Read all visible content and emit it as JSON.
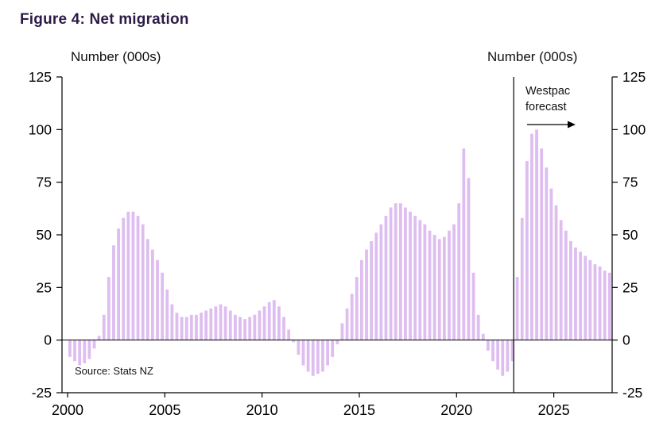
{
  "title": "Figure 4: Net migration",
  "left_axis_label": "Number (000s)",
  "right_axis_label": "Number (000s)",
  "forecast_label": "Westpac forecast",
  "source": "Source: Stats NZ",
  "y_ticks": [
    125,
    100,
    75,
    50,
    25,
    0,
    -25
  ],
  "x_ticks": [
    2000,
    2005,
    2010,
    2015,
    2020,
    2025
  ],
  "colors": {
    "bar": "#debdf0",
    "axis": "#000000",
    "title": "#2e1a47"
  },
  "chart_data": {
    "type": "bar",
    "title": "Figure 4: Net migration",
    "ylabel": "Number (000s)",
    "unit": "thousands of people",
    "frequency": "quarterly",
    "start_year": 2000,
    "x_range": [
      2000,
      2028
    ],
    "ylim": [
      -25,
      125
    ],
    "forecast_start_year": 2023,
    "forecast_source": "Westpac forecast",
    "legend_position": "none",
    "grid": false,
    "series": [
      {
        "name": "Net migration (000s)",
        "values": [
          -8,
          -10,
          -12,
          -11,
          -9,
          -4,
          2,
          12,
          30,
          45,
          53,
          58,
          61,
          61,
          59,
          55,
          48,
          43,
          38,
          32,
          24,
          17,
          13,
          11,
          11,
          12,
          12,
          13,
          14,
          15,
          16,
          17,
          16,
          14,
          12,
          11,
          10,
          11,
          12,
          14,
          16,
          18,
          19,
          16,
          11,
          5,
          -1,
          -7,
          -12,
          -15,
          -17,
          -16,
          -15,
          -12,
          -8,
          -2,
          8,
          15,
          22,
          30,
          38,
          43,
          47,
          51,
          55,
          59,
          63,
          65,
          65,
          63,
          61,
          59,
          57,
          55,
          52,
          50,
          48,
          49,
          52,
          55,
          65,
          91,
          77,
          32,
          12,
          3,
          -5,
          -10,
          -14,
          -17,
          -15,
          -10,
          30,
          58,
          85,
          98,
          100,
          91,
          82,
          72,
          64,
          57,
          52,
          47,
          44,
          42,
          40,
          38,
          36,
          35,
          33,
          32
        ]
      }
    ]
  }
}
